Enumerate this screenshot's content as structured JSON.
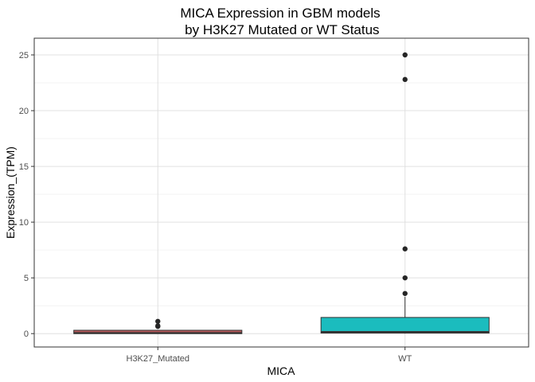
{
  "chart_data": {
    "type": "box",
    "title_line1": "MICA Expression in GBM models",
    "title_line2": " by H3K27 Mutated or WT Status",
    "xlabel": "MICA",
    "ylabel": "Expression_(TPM)",
    "ylim": [
      -1.2,
      26.5
    ],
    "yticks": [
      0,
      5,
      10,
      15,
      20,
      25
    ],
    "ytick_labels": [
      "0",
      "5",
      "10",
      "15",
      "20",
      "25"
    ],
    "grid": true,
    "legend": "none",
    "categories": [
      "H3K27_Mutated",
      "WT"
    ],
    "boxes": [
      {
        "name": "H3K27_Mutated",
        "color": "#b5585a",
        "min": 0.0,
        "q1": 0.0,
        "median": 0.05,
        "q3": 0.3,
        "max": 0.3,
        "outliers": [
          1.1,
          0.7,
          0.65
        ]
      },
      {
        "name": "WT",
        "color": "#1bbcbe",
        "min": 0.0,
        "q1": 0.05,
        "median": 0.15,
        "q3": 1.45,
        "max": 3.3,
        "outliers": [
          3.6,
          5.0,
          7.6,
          22.8,
          25.0
        ]
      }
    ]
  }
}
